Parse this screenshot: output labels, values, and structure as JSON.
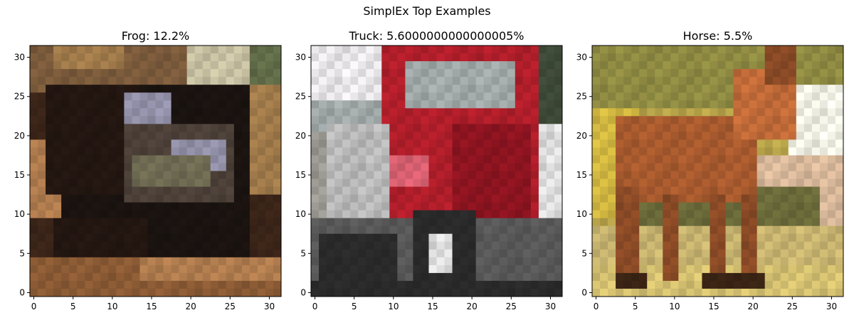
{
  "figure": {
    "suptitle": "SimplEx Top Examples"
  },
  "chart_data": [
    {
      "type": "heatmap",
      "title": "Frog: 12.2%",
      "xlabel": "",
      "ylabel": "",
      "xlim": [
        -0.5,
        31.5
      ],
      "ylim": [
        31.5,
        -0.5
      ],
      "xticks": [
        0,
        5,
        10,
        15,
        20,
        25,
        30
      ],
      "yticks": [
        0,
        5,
        10,
        15,
        20,
        25,
        30
      ],
      "grid": false,
      "image": {
        "size": [
          32,
          32
        ],
        "palette": [
          "#3a2418",
          "#231611",
          "#1a1310",
          "#7a5a3b",
          "#a07a4a",
          "#6e6a52",
          "#9290a8",
          "#c7c0a2",
          "#b07c4e",
          "#8a5a34",
          "#4c4038",
          "#606b48"
        ],
        "blobs": [
          {
            "c": 0,
            "x": 0,
            "y": 0,
            "w": 32,
            "h": 32
          },
          {
            "c": 3,
            "x": 0,
            "y": 0,
            "w": 32,
            "h": 6
          },
          {
            "c": 7,
            "x": 20,
            "y": 0,
            "w": 9,
            "h": 5
          },
          {
            "c": 11,
            "x": 28,
            "y": 0,
            "w": 4,
            "h": 7
          },
          {
            "c": 4,
            "x": 3,
            "y": 0,
            "w": 9,
            "h": 3
          },
          {
            "c": 8,
            "x": 0,
            "y": 12,
            "w": 6,
            "h": 10
          },
          {
            "c": 2,
            "x": 4,
            "y": 5,
            "w": 24,
            "h": 22
          },
          {
            "c": 1,
            "x": 2,
            "y": 5,
            "w": 12,
            "h": 14
          },
          {
            "c": 6,
            "x": 12,
            "y": 6,
            "w": 6,
            "h": 5
          },
          {
            "c": 10,
            "x": 12,
            "y": 10,
            "w": 14,
            "h": 10
          },
          {
            "c": 6,
            "x": 18,
            "y": 12,
            "w": 7,
            "h": 4
          },
          {
            "c": 5,
            "x": 13,
            "y": 14,
            "w": 10,
            "h": 4
          },
          {
            "c": 1,
            "x": 3,
            "y": 22,
            "w": 12,
            "h": 6
          },
          {
            "c": 9,
            "x": 0,
            "y": 27,
            "w": 32,
            "h": 5
          },
          {
            "c": 8,
            "x": 14,
            "y": 27,
            "w": 18,
            "h": 3
          },
          {
            "c": 4,
            "x": 28,
            "y": 5,
            "w": 4,
            "h": 14
          }
        ]
      }
    },
    {
      "type": "heatmap",
      "title": "Truck: 5.6000000000000005%",
      "xlabel": "",
      "ylabel": "",
      "xlim": [
        -0.5,
        31.5
      ],
      "ylim": [
        31.5,
        -0.5
      ],
      "xticks": [
        0,
        5,
        10,
        15,
        20,
        25,
        30
      ],
      "yticks": [
        0,
        5,
        10,
        15,
        20,
        25,
        30
      ],
      "grid": false,
      "image": {
        "size": [
          32,
          32
        ],
        "palette": [
          "#9a9890",
          "#e8e6e8",
          "#b8b8b8",
          "#b01e2a",
          "#8c1420",
          "#d86070",
          "#2a2a2a",
          "#585858",
          "#707a5a",
          "#dcdcdc",
          "#a0a8a8",
          "#3e4a38"
        ],
        "blobs": [
          {
            "c": 0,
            "x": 0,
            "y": 0,
            "w": 32,
            "h": 32
          },
          {
            "c": 1,
            "x": 0,
            "y": 0,
            "w": 14,
            "h": 8
          },
          {
            "c": 10,
            "x": 0,
            "y": 7,
            "w": 10,
            "h": 4
          },
          {
            "c": 11,
            "x": 28,
            "y": 0,
            "w": 4,
            "h": 12
          },
          {
            "c": 9,
            "x": 25,
            "y": 10,
            "w": 7,
            "h": 12
          },
          {
            "c": 3,
            "x": 9,
            "y": 0,
            "w": 20,
            "h": 24
          },
          {
            "c": 4,
            "x": 18,
            "y": 10,
            "w": 10,
            "h": 12
          },
          {
            "c": 10,
            "x": 12,
            "y": 2,
            "w": 14,
            "h": 6
          },
          {
            "c": 5,
            "x": 9,
            "y": 14,
            "w": 6,
            "h": 4
          },
          {
            "c": 2,
            "x": 2,
            "y": 10,
            "w": 8,
            "h": 13
          },
          {
            "c": 7,
            "x": 0,
            "y": 22,
            "w": 32,
            "h": 10
          },
          {
            "c": 6,
            "x": 1,
            "y": 24,
            "w": 10,
            "h": 8
          },
          {
            "c": 6,
            "x": 13,
            "y": 21,
            "w": 8,
            "h": 11
          },
          {
            "c": 9,
            "x": 15,
            "y": 24,
            "w": 3,
            "h": 5
          },
          {
            "c": 7,
            "x": 22,
            "y": 22,
            "w": 6,
            "h": 8
          },
          {
            "c": 6,
            "x": 0,
            "y": 30,
            "w": 32,
            "h": 2
          }
        ]
      }
    },
    {
      "type": "heatmap",
      "title": "Horse: 5.5%",
      "xlabel": "",
      "ylabel": "",
      "xlim": [
        -0.5,
        31.5
      ],
      "ylim": [
        31.5,
        -0.5
      ],
      "xticks": [
        0,
        5,
        10,
        15,
        20,
        25,
        30
      ],
      "yticks": [
        0,
        5,
        10,
        15,
        20,
        25,
        30
      ],
      "grid": false,
      "image": {
        "size": [
          32,
          32
        ],
        "palette": [
          "#b8a44a",
          "#d0b640",
          "#8e8a42",
          "#f0f0e4",
          "#a85a2e",
          "#c06a38",
          "#d8b89a",
          "#c8b470",
          "#3a2414",
          "#d4c070",
          "#6a6a3a",
          "#8a4a26"
        ],
        "blobs": [
          {
            "c": 0,
            "x": 0,
            "y": 0,
            "w": 32,
            "h": 32
          },
          {
            "c": 2,
            "x": 0,
            "y": 0,
            "w": 32,
            "h": 8
          },
          {
            "c": 1,
            "x": 0,
            "y": 8,
            "w": 6,
            "h": 14
          },
          {
            "c": 3,
            "x": 25,
            "y": 5,
            "w": 7,
            "h": 10
          },
          {
            "c": 6,
            "x": 19,
            "y": 14,
            "w": 13,
            "h": 10
          },
          {
            "c": 10,
            "x": 5,
            "y": 18,
            "w": 24,
            "h": 5
          },
          {
            "c": 7,
            "x": 0,
            "y": 23,
            "w": 32,
            "h": 9
          },
          {
            "c": 9,
            "x": 0,
            "y": 28,
            "w": 32,
            "h": 4
          },
          {
            "c": 4,
            "x": 3,
            "y": 9,
            "w": 18,
            "h": 11
          },
          {
            "c": 5,
            "x": 18,
            "y": 3,
            "w": 8,
            "h": 9
          },
          {
            "c": 11,
            "x": 22,
            "y": 0,
            "w": 4,
            "h": 5
          },
          {
            "c": 11,
            "x": 3,
            "y": 18,
            "w": 3,
            "h": 12
          },
          {
            "c": 11,
            "x": 9,
            "y": 19,
            "w": 2,
            "h": 11
          },
          {
            "c": 11,
            "x": 15,
            "y": 19,
            "w": 2,
            "h": 11
          },
          {
            "c": 11,
            "x": 19,
            "y": 19,
            "w": 2,
            "h": 11
          },
          {
            "c": 8,
            "x": 3,
            "y": 29,
            "w": 4,
            "h": 2
          },
          {
            "c": 8,
            "x": 14,
            "y": 29,
            "w": 8,
            "h": 2
          }
        ]
      }
    }
  ]
}
